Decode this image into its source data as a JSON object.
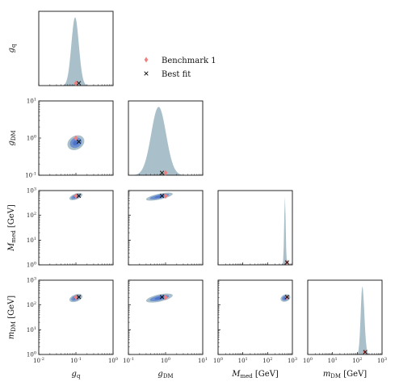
{
  "chart_data": {
    "type": "corner",
    "params": [
      {
        "key": "g_q",
        "label": "g",
        "sub": "q",
        "unit": "",
        "range": [
          0.01,
          1
        ],
        "log": true
      },
      {
        "key": "g_DM",
        "label": "g",
        "sub": "DM",
        "unit": "",
        "range": [
          0.1,
          10
        ],
        "log": true
      },
      {
        "key": "M_med",
        "label": "M",
        "sub": "med",
        "unit": "[GeV]",
        "range": [
          1,
          1000
        ],
        "log": true
      },
      {
        "key": "m_DM",
        "label": "m",
        "sub": "DM",
        "unit": "[GeV]",
        "range": [
          1,
          1000
        ],
        "log": true
      }
    ],
    "tick_labels": {
      "g_q": [
        "10",
        "10",
        "10"
      ],
      "g_q_exp": [
        "-2",
        "-1",
        "0"
      ],
      "g_DM": [
        "10",
        "10",
        "10"
      ],
      "g_DM_exp": [
        "-1",
        "0",
        "1"
      ],
      "mass": [
        "10",
        "10",
        "10",
        "10"
      ],
      "mass_exp": [
        "0",
        "1",
        "2",
        "3"
      ]
    },
    "benchmark": {
      "name": "Benchmark 1",
      "g_q": 0.1,
      "g_DM": 1.0,
      "M_med": 600,
      "m_DM": 200,
      "color": "#f07f7f",
      "marker": "diamond"
    },
    "best_fit": {
      "name": "Best fit",
      "g_q": 0.12,
      "g_DM": 0.8,
      "M_med": 610,
      "m_DM": 210,
      "color": "#111111",
      "marker": "x"
    },
    "marginal_peaks": {
      "g_q": 0.095,
      "g_DM": 0.65,
      "M_med": 500,
      "m_DM": 160
    },
    "colors": {
      "marginal": "#a9bfca",
      "contour_outer": "#a9bfca",
      "contour_inner": "#6c8fd0",
      "contour_core": "#4d74c8"
    },
    "legend_placement": "top-center",
    "grid": false
  }
}
